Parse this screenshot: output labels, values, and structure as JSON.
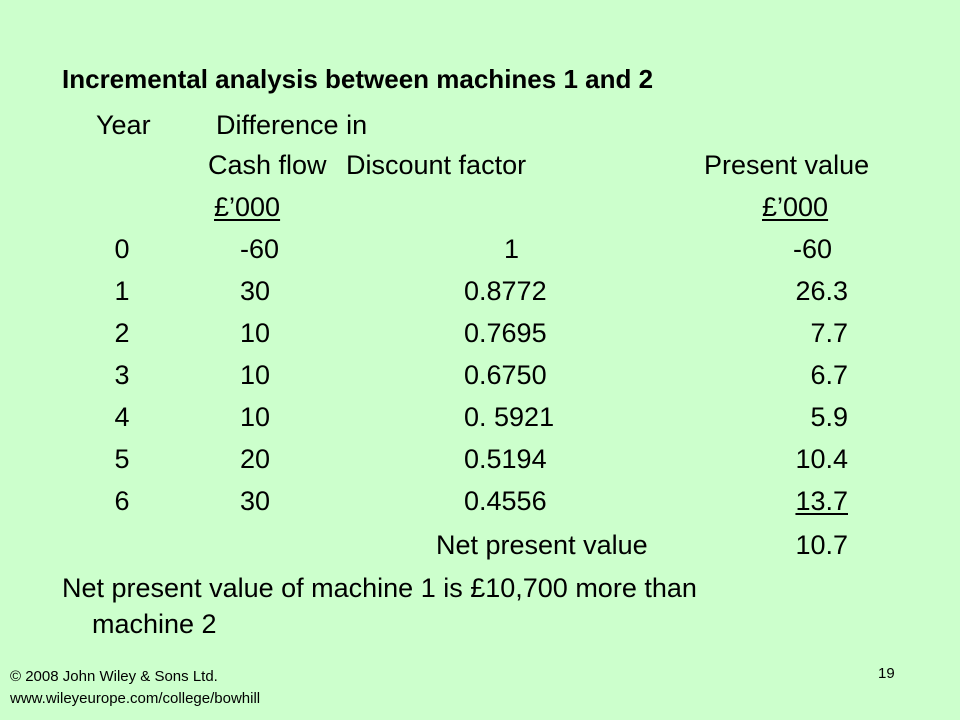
{
  "title": "Incremental analysis between machines 1 and 2",
  "headers": {
    "year": "Year",
    "diff_line1": "Difference in",
    "cash_flow": "Cash flow",
    "discount_factor": "Discount factor",
    "present_value": "Present value",
    "cf_unit": "£’000",
    "pv_unit": "£’000"
  },
  "rows": [
    {
      "year": "0",
      "cash_flow": "-60",
      "discount": "1",
      "pv": "-60"
    },
    {
      "year": "1",
      "cash_flow": "30",
      "discount": "0.8772",
      "pv": "26.3"
    },
    {
      "year": "2",
      "cash_flow": "10",
      "discount": "0.7695",
      "pv": "7.7"
    },
    {
      "year": "3",
      "cash_flow": "10",
      "discount": "0.6750",
      "pv": "6.7"
    },
    {
      "year": "4",
      "cash_flow": "10",
      "discount": "0. 5921",
      "pv": "5.9"
    },
    {
      "year": "5",
      "cash_flow": "20",
      "discount": "0.5194",
      "pv": "10.4"
    },
    {
      "year": "6",
      "cash_flow": "30",
      "discount": "0.4556",
      "pv": "13.7"
    }
  ],
  "npv_label": "Net present value",
  "npv_value": "10.7",
  "conclusion_line1": "Net present value of machine 1 is £10,700 more than",
  "conclusion_line2": "machine 2",
  "copyright": "© 2008 John Wiley & Sons Ltd.",
  "url": "www.wileyeurope.com/college/bowhill",
  "page_number": "19"
}
